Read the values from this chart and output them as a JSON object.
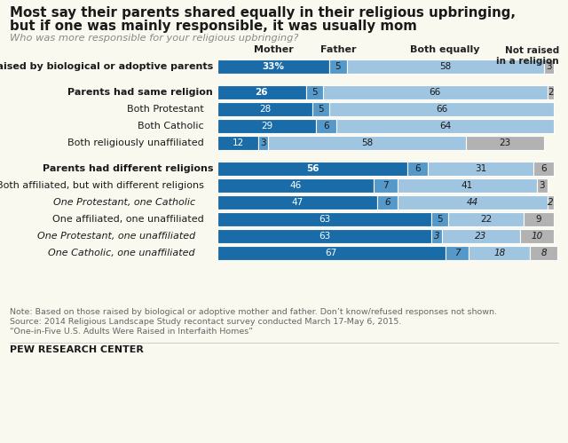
{
  "title_line1": "Most say their parents shared equally in their religious upbringing,",
  "title_line2": "but if one was mainly responsible, it was usually mom",
  "subtitle": "Who was more responsible for your religious upbringing?",
  "rows": [
    {
      "label": "All raised by biological or adoptive parents",
      "values": [
        33,
        5,
        58,
        3
      ],
      "bold": true,
      "italic": false,
      "indent": 0,
      "separator_before": false,
      "first_pct": true
    },
    {
      "label": "Parents had same religion",
      "values": [
        26,
        5,
        66,
        2
      ],
      "bold": true,
      "italic": false,
      "indent": 0,
      "separator_before": true,
      "first_pct": false
    },
    {
      "label": "Both Protestant",
      "values": [
        28,
        5,
        66,
        0
      ],
      "bold": false,
      "italic": false,
      "indent": 1,
      "separator_before": false,
      "first_pct": false
    },
    {
      "label": "Both Catholic",
      "values": [
        29,
        6,
        64,
        0
      ],
      "bold": false,
      "italic": false,
      "indent": 1,
      "separator_before": false,
      "first_pct": false
    },
    {
      "label": "Both religiously unaffiliated",
      "values": [
        12,
        3,
        58,
        23
      ],
      "bold": false,
      "italic": false,
      "indent": 1,
      "separator_before": false,
      "first_pct": false
    },
    {
      "label": "Parents had different religions",
      "values": [
        56,
        6,
        31,
        6
      ],
      "bold": true,
      "italic": false,
      "indent": 0,
      "separator_before": true,
      "first_pct": false
    },
    {
      "label": "Both affiliated, but with different religions",
      "values": [
        46,
        7,
        41,
        3
      ],
      "bold": false,
      "italic": false,
      "indent": 1,
      "separator_before": false,
      "first_pct": false
    },
    {
      "label": "One Protestant, one Catholic",
      "values": [
        47,
        6,
        44,
        2
      ],
      "bold": false,
      "italic": true,
      "indent": 2,
      "separator_before": false,
      "first_pct": false
    },
    {
      "label": "One affiliated, one unaffiliated",
      "values": [
        63,
        5,
        22,
        9
      ],
      "bold": false,
      "italic": false,
      "indent": 1,
      "separator_before": false,
      "first_pct": false
    },
    {
      "label": "One Protestant, one unaffiliated",
      "values": [
        63,
        3,
        23,
        10
      ],
      "bold": false,
      "italic": true,
      "indent": 2,
      "separator_before": false,
      "first_pct": false
    },
    {
      "label": "One Catholic, one unaffiliated",
      "values": [
        67,
        7,
        18,
        8
      ],
      "bold": false,
      "italic": true,
      "indent": 2,
      "separator_before": false,
      "first_pct": false
    }
  ],
  "special_bold_word": {
    "Parents had same religion": "same religion",
    "Parents had different religions": "different religions"
  },
  "colors": {
    "mother": "#1a6ca8",
    "father": "#5499c9",
    "both_equally": "#9fc5e1",
    "not_raised": "#b2b2b2",
    "bg": "#f9f9f0"
  },
  "note1": "Note: Based on those raised by biological or adoptive mother and father. Don’t know/refused responses not shown.",
  "note2": "Source: 2014 Religious Landscape Study recontact survey conducted March 17-May 6, 2015.",
  "note3": "“One-in-Five U.S. Adults Were Raised in Interfaith Homes”",
  "logo": "PEW RESEARCH CENTER"
}
